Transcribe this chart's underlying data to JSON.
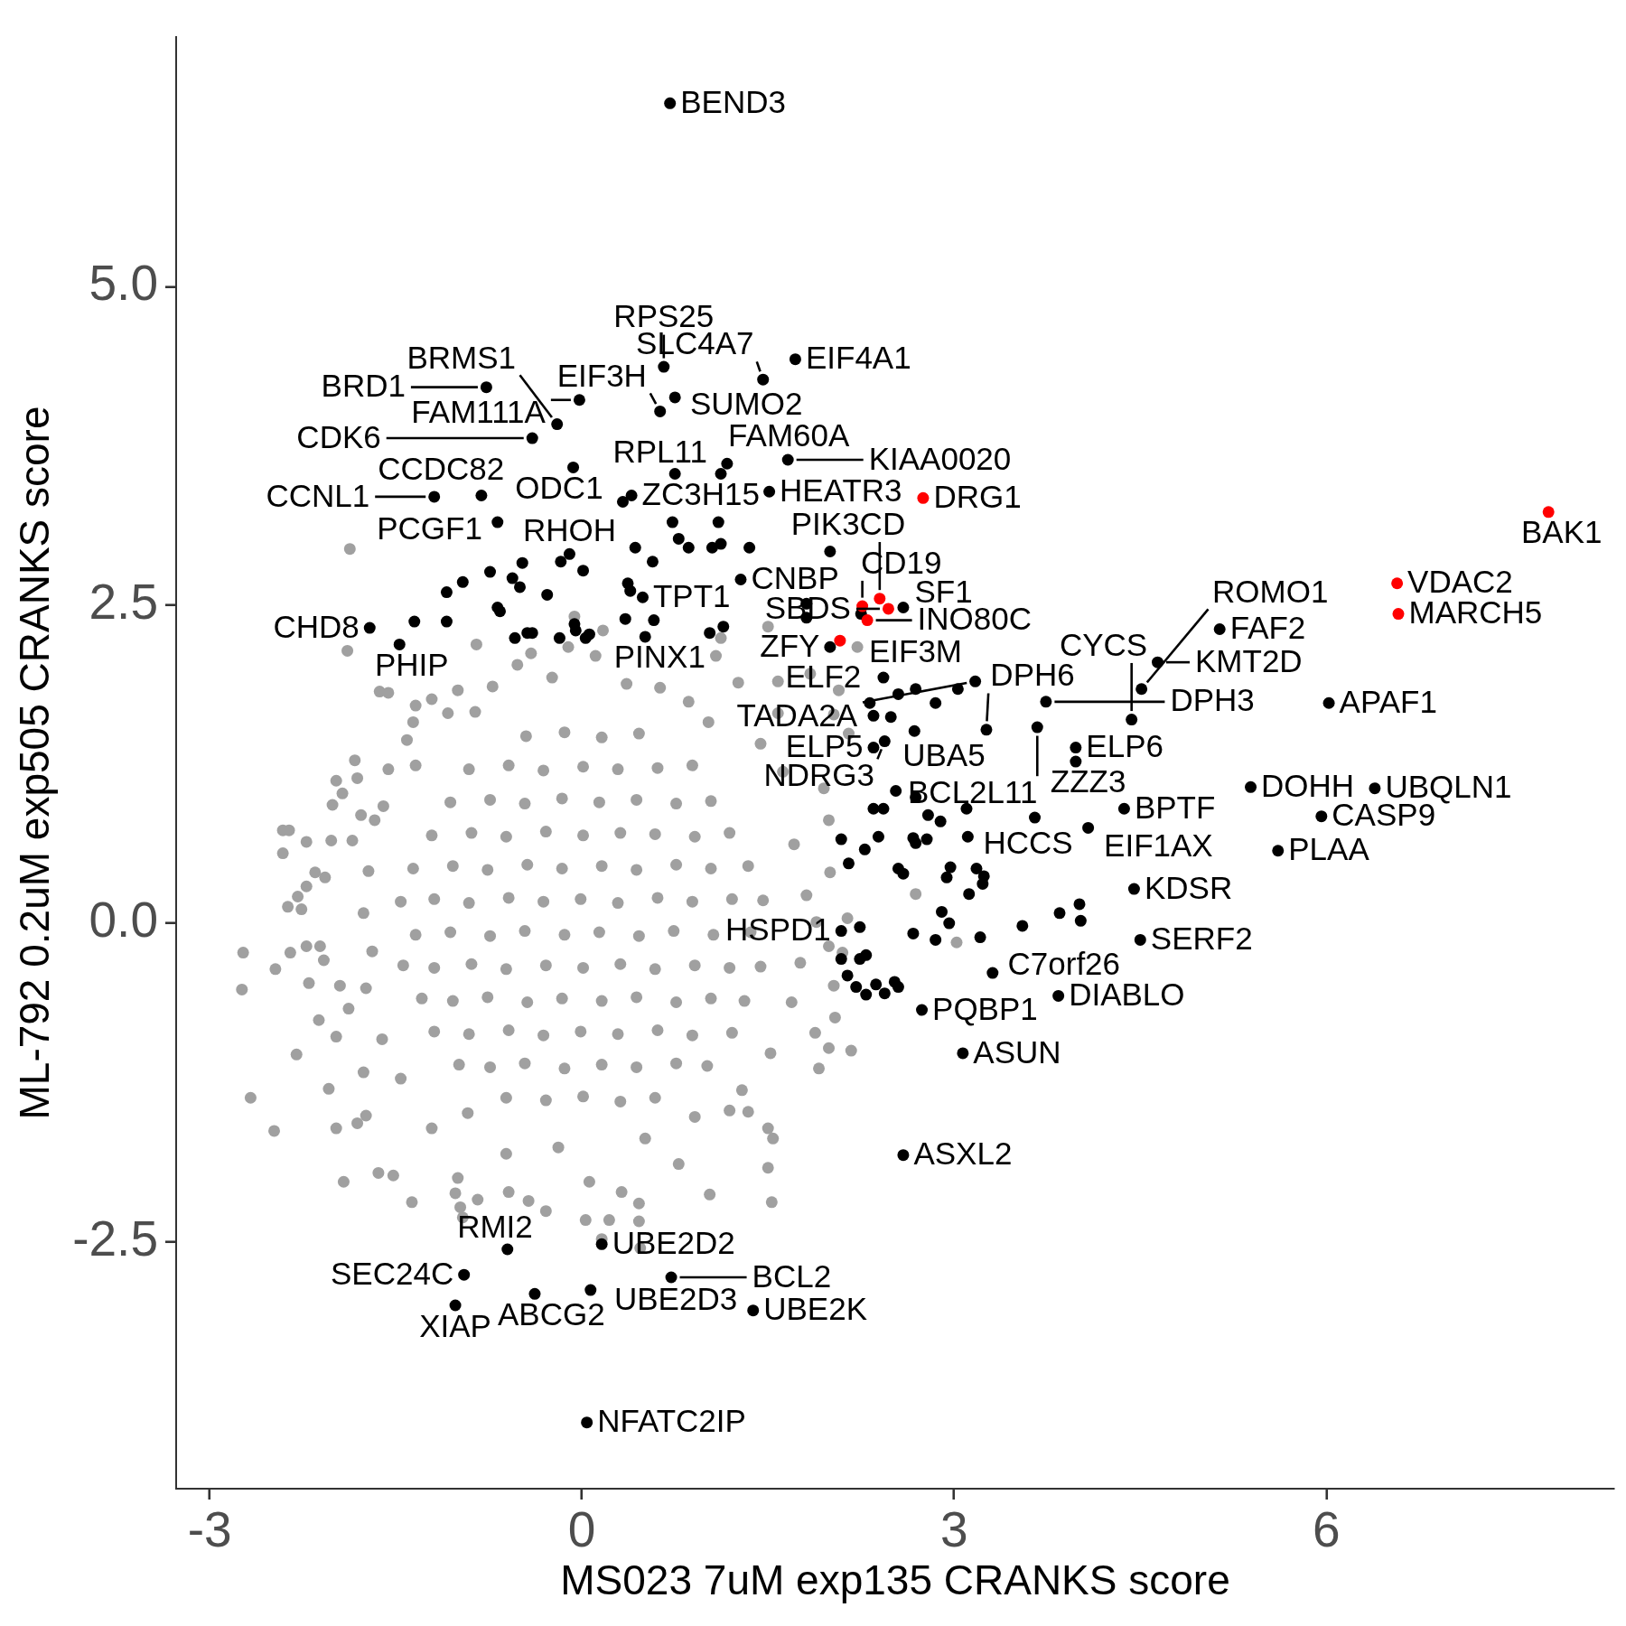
{
  "chart_data": {
    "type": "scatter",
    "xlabel": "MS023 7uM exp135 CRANKS score",
    "ylabel": "ML-792 0.2uM exp505 CRANKS score",
    "xlim": [
      -3.27,
      8.32
    ],
    "ylim": [
      -4.44,
      6.96
    ],
    "xticks": [
      -3,
      0,
      3,
      6
    ],
    "yticks": [
      -2.5,
      {
        "value": 0,
        "label": "0.0"
      },
      2.5,
      {
        "value": 5,
        "label": "5.0"
      }
    ],
    "marker": "circle",
    "series": [
      {
        "color": "#a0a0a0",
        "x": [
          -1.87,
          -1.89,
          -0.85,
          1.5,
          2.22,
          -0.06,
          0.17,
          1.12,
          2.07,
          1.84,
          2.69,
          3.02,
          2.17,
          -2.73,
          -2.74,
          -2.67,
          -2.48,
          -2.47,
          -2.41,
          -2.36,
          -2.41,
          -2.35,
          -2.3,
          -2.22,
          -2.22,
          -2.2,
          -2.37,
          -2.26,
          -2.29,
          -2.22,
          -2.15,
          -2.07,
          -2.11,
          -2.08,
          -2.12,
          -2.04,
          -1.98,
          -1.98,
          -1.92,
          -1.98,
          -1.83,
          -1.81,
          -1.93,
          -2.01,
          -2.02,
          -1.85,
          -1.78,
          -1.88,
          -1.95,
          -1.76,
          -1.74,
          -1.81,
          -1.64,
          -1.52,
          -1.37,
          -1.0,
          0.78,
          1.5,
          1.54,
          1.5,
          1.34,
          1.19,
          1.99,
          1.91,
          2.04,
          1.88,
          2.03,
          1.99,
          2.1,
          1.89,
          1.81,
          2.14,
          2.0,
          1.99,
          1.95,
          2.15,
          2.03,
          1.58,
          1.58,
          1.26,
          1.08,
          0.63,
          0.11,
          -0.11,
          -0.41,
          -0.52,
          -1.0,
          -1.34,
          -1.21,
          -1.36,
          -1.63,
          -1.56,
          -1.08,
          -1.34,
          -1.6,
          -1.67,
          -1.02,
          -0.84,
          -0.98,
          -0.96,
          -0.59,
          -0.43,
          -0.29,
          0.06,
          0.32,
          0.46,
          0.03,
          0.22,
          0.46,
          0.16,
          0.47,
          1.03,
          1.53,
          -0.72,
          -0.24,
          0.36,
          0.86,
          1.02,
          -0.86,
          -1.72,
          -1.76,
          -1.69,
          -1.74,
          -1.61,
          -1.46,
          -1.56,
          -1.41,
          1.71,
          1.76,
          1.62,
          1.44,
          1.69,
          1.52,
          1.29,
          -0.61,
          -0.19,
          0.51,
          -1.21,
          0.91,
          -0.92,
          -0.45,
          -0.14,
          0.16,
          0.46,
          -0.91,
          -0.59,
          -0.31,
          0.01,
          0.29,
          0.61,
          0.89,
          -1.06,
          -0.74,
          -0.46,
          -0.16,
          0.14,
          0.44,
          0.76,
          1.04,
          -1.21,
          -0.89,
          -0.61,
          -0.29,
          0.01,
          0.31,
          0.59,
          0.91,
          1.19,
          -1.36,
          -1.04,
          -0.76,
          -0.44,
          -0.16,
          0.16,
          0.44,
          0.76,
          1.04,
          1.34,
          -1.46,
          -1.19,
          -0.91,
          -0.59,
          -0.31,
          -0.01,
          0.29,
          0.61,
          0.89,
          1.21,
          1.46,
          -1.34,
          -1.06,
          -0.74,
          -0.46,
          -0.14,
          0.14,
          0.46,
          0.74,
          1.06,
          1.36,
          -1.44,
          -1.19,
          -0.89,
          -0.61,
          -0.29,
          0.01,
          0.31,
          0.59,
          0.91,
          1.19,
          1.44,
          -1.29,
          -1.04,
          -0.76,
          -0.44,
          -0.16,
          0.16,
          0.44,
          0.76,
          1.04,
          1.31,
          -1.19,
          -0.91,
          -0.59,
          -0.31,
          -0.01,
          0.29,
          0.61,
          0.89,
          1.21,
          -0.99,
          -0.74,
          -0.46,
          -0.14,
          0.16,
          0.44,
          0.76,
          1.01,
          -0.61,
          -0.29,
          0.01,
          0.31,
          0.59
        ],
        "values": [
          2.94,
          2.14,
          2.19,
          2.33,
          2.17,
          2.41,
          2.3,
          2.24,
          1.83,
          1.96,
          0.23,
          -0.15,
          -1.0,
          -0.23,
          -0.52,
          -1.37,
          -1.63,
          -0.36,
          0.73,
          0.73,
          0.55,
          -0.23,
          -1.03,
          0.64,
          -0.18,
          -0.47,
          0.13,
          0.11,
          0.21,
          0.29,
          0.4,
          0.36,
          -0.18,
          -0.29,
          -0.76,
          -1.3,
          -0.89,
          -1.61,
          -2.03,
          1.12,
          1.28,
          1.14,
          1.02,
          0.93,
          0.65,
          0.65,
          0.85,
          -0.67,
          -0.49,
          -1.17,
          -1.51,
          -1.57,
          -1.96,
          -1.98,
          -2.19,
          -2.0,
          -1.89,
          -1.61,
          -1.69,
          -1.92,
          -1.48,
          -1.47,
          -0.98,
          -1.14,
          -0.74,
          -0.86,
          -0.49,
          -0.18,
          -0.23,
          0.01,
          0.22,
          0.04,
          0.4,
          0.81,
          1.06,
          1.49,
          1.64,
          1.65,
          1.9,
          1.89,
          2.1,
          1.85,
          2.1,
          2.17,
          2.12,
          2.03,
          1.83,
          1.71,
          1.76,
          1.58,
          1.82,
          1.81,
          1.65,
          1.24,
          0.92,
          0.81,
          -2.12,
          -2.17,
          -2.23,
          -2.31,
          -2.11,
          -2.18,
          -2.26,
          -2.03,
          -2.11,
          -2.2,
          -2.33,
          -2.33,
          -2.34,
          -2.48,
          -2.55,
          -2.13,
          -2.19,
          1.86,
          1.93,
          1.88,
          1.74,
          1.58,
          1.66,
          0.41,
          0.08,
          -0.22,
          -0.51,
          -0.91,
          -1.22,
          1.21,
          1.44,
          0.62,
          -0.31,
          1.19,
          1.41,
          -0.62,
          -1.02,
          -1.31,
          -1.81,
          -1.76,
          -1.69,
          -1.61,
          -1.52,
          -1.49,
          1.47,
          1.5,
          1.46,
          1.49,
          1.21,
          1.24,
          1.2,
          1.23,
          1.21,
          1.22,
          1.24,
          0.95,
          0.97,
          0.94,
          0.98,
          0.95,
          0.97,
          0.94,
          0.96,
          0.69,
          0.71,
          0.68,
          0.72,
          0.69,
          0.71,
          0.7,
          0.68,
          0.71,
          0.43,
          0.45,
          0.42,
          0.46,
          0.43,
          0.45,
          0.42,
          0.46,
          0.43,
          0.45,
          0.17,
          0.19,
          0.16,
          0.2,
          0.17,
          0.19,
          0.16,
          0.2,
          0.17,
          0.19,
          0.18,
          -0.09,
          -0.07,
          -0.1,
          -0.06,
          -0.09,
          -0.07,
          -0.1,
          -0.06,
          -0.09,
          -0.07,
          -0.33,
          -0.35,
          -0.32,
          -0.36,
          -0.33,
          -0.35,
          -0.32,
          -0.36,
          -0.33,
          -0.35,
          -0.34,
          -0.59,
          -0.61,
          -0.58,
          -0.62,
          -0.59,
          -0.61,
          -0.58,
          -0.62,
          -0.59,
          -0.61,
          -0.85,
          -0.87,
          -0.84,
          -0.88,
          -0.85,
          -0.87,
          -0.84,
          -0.88,
          -0.86,
          -1.11,
          -1.13,
          -1.1,
          -1.14,
          -1.11,
          -1.13,
          -1.1,
          -1.12,
          -1.37,
          -1.39,
          -1.36,
          -1.4,
          -1.37
        ]
      },
      {
        "color": "#000000",
        "x": [
          0.71,
          -0.77,
          0.66,
          1.72,
          1.46,
          0.75,
          -0.02,
          0.63,
          -0.2,
          -0.4,
          -0.07,
          0.75,
          1.17,
          1.12,
          1.66,
          1.51,
          -0.81,
          -1.19,
          0.33,
          0.4,
          -0.68,
          0.73,
          1.1,
          0.78,
          0.86,
          1.05,
          1.12,
          1.35,
          0.43,
          0.57,
          -0.1,
          -0.17,
          0.01,
          -0.48,
          -0.74,
          -0.56,
          -0.5,
          -0.96,
          -1.09,
          -0.28,
          2.0,
          1.28,
          0.37,
          0.39,
          0.49,
          1.81,
          1.81,
          2.25,
          2.59,
          -1.71,
          -1.47,
          -1.35,
          -1.09,
          -0.68,
          -0.66,
          -0.54,
          -0.44,
          -0.4,
          -0.18,
          -0.06,
          -0.05,
          0.06,
          0.03,
          0.35,
          0.58,
          0.51,
          1.03,
          1.14,
          2.0,
          2.43,
          2.55,
          2.69,
          2.85,
          3.03,
          3.17,
          3.74,
          2.32,
          2.35,
          2.49,
          2.68,
          3.26,
          3.67,
          4.43,
          4.51,
          4.64,
          5.14,
          6.02,
          3.98,
          3.98,
          2.35,
          2.44,
          4.37,
          5.39,
          6.39,
          2.53,
          2.69,
          2.35,
          2.43,
          3.1,
          2.79,
          2.89,
          3.65,
          4.08,
          2.09,
          2.28,
          2.39,
          2.15,
          2.67,
          2.69,
          2.78,
          3.11,
          2.55,
          2.59,
          2.97,
          2.94,
          3.18,
          3.24,
          3.23,
          3.12,
          5.61,
          4.45,
          5.96,
          2.9,
          2.96,
          2.67,
          2.85,
          3.21,
          3.55,
          3.85,
          4.01,
          4.02,
          4.5,
          2.09,
          2.24,
          2.09,
          2.24,
          2.29,
          2.14,
          2.21,
          2.29,
          2.37,
          2.44,
          2.52,
          2.55,
          3.31,
          3.84,
          2.74,
          3.07,
          2.59,
          -0.6,
          0.16,
          -0.95,
          -1.02,
          -0.38,
          0.07,
          0.72,
          1.38,
          0.04
        ],
        "values": [
          6.44,
          4.21,
          4.37,
          4.43,
          4.27,
          4.13,
          4.11,
          4.02,
          3.92,
          3.81,
          3.58,
          3.53,
          3.61,
          3.53,
          3.64,
          3.39,
          3.36,
          3.35,
          3.31,
          3.36,
          3.15,
          3.15,
          3.15,
          3.02,
          2.95,
          2.95,
          2.98,
          2.95,
          2.95,
          2.84,
          2.9,
          2.84,
          2.77,
          2.83,
          2.76,
          2.71,
          2.64,
          2.68,
          2.6,
          2.58,
          2.92,
          2.7,
          2.67,
          2.61,
          2.56,
          2.51,
          2.4,
          2.43,
          2.48,
          2.32,
          2.19,
          2.37,
          2.37,
          2.48,
          2.45,
          2.24,
          2.28,
          2.28,
          2.24,
          2.35,
          2.3,
          2.27,
          2.24,
          2.39,
          2.38,
          2.25,
          2.28,
          2.33,
          2.17,
          1.93,
          1.8,
          1.84,
          1.73,
          1.84,
          1.9,
          1.74,
          1.73,
          1.63,
          1.62,
          1.51,
          1.52,
          1.54,
          1.6,
          1.84,
          2.05,
          2.31,
          1.73,
          1.38,
          1.27,
          1.38,
          1.43,
          0.9,
          1.07,
          1.06,
          1.04,
          0.99,
          0.9,
          0.9,
          0.9,
          0.85,
          0.8,
          0.83,
          0.75,
          0.66,
          0.58,
          0.68,
          0.47,
          0.67,
          0.63,
          0.66,
          0.68,
          0.43,
          0.39,
          0.44,
          0.36,
          0.43,
          0.37,
          0.31,
          0.23,
          0.57,
          0.27,
          0.84,
          0.09,
          0.0,
          -0.08,
          -0.13,
          -0.11,
          -0.02,
          0.08,
          0.15,
          0.02,
          -0.13,
          -0.06,
          -0.03,
          -0.28,
          -0.28,
          -0.25,
          -0.41,
          -0.5,
          -0.56,
          -0.48,
          -0.55,
          -0.46,
          -0.5,
          -0.39,
          -0.57,
          -0.68,
          -1.02,
          -1.82,
          -2.56,
          -2.52,
          -2.76,
          -3.0,
          -2.91,
          -2.88,
          -2.78,
          -3.04,
          -3.92
        ],
        "value_labels": [
          "BEND3",
          "BRD1",
          "RPS25",
          "EIF4A1",
          "SLC4A7",
          "SUMO2",
          "FAM111A",
          "EIF3H",
          "BRMS1",
          "CDK6",
          "ODC1",
          "RPL11",
          "FAM60A",
          null,
          "KIAA0020",
          "HEATR3",
          "CCDC82",
          "CCNL1",
          null,
          "ZC3H15",
          "PCGF1",
          null,
          null,
          null,
          null,
          null,
          null,
          null,
          null,
          null,
          "RHOH",
          null,
          null,
          null,
          null,
          null,
          null,
          null,
          null,
          null,
          null,
          "CNBP",
          null,
          null,
          "TPT1",
          null,
          null,
          null,
          "SF1",
          "CHD8",
          "PHIP",
          null,
          null,
          null,
          null,
          null,
          null,
          null,
          null,
          null,
          null,
          null,
          null,
          null,
          null,
          "PINX1",
          null,
          null,
          "ZFY",
          "EIF3M",
          null,
          null,
          null,
          null,
          "TADA2A",
          "DPH3",
          null,
          null,
          null,
          "UBA5",
          "DPH6",
          "BCL2L11",
          "CYCS",
          "ROMO1",
          "KMT2D",
          "FAF2",
          "APAF1",
          "ELP6",
          "ZZZ3",
          "ELP5",
          "NDRG3",
          "BPTF",
          "DOHH",
          "UBQLN1",
          null,
          null,
          null,
          null,
          null,
          null,
          null,
          null,
          "EIF1AX",
          null,
          null,
          null,
          null,
          null,
          null,
          null,
          "HCCS",
          null,
          null,
          null,
          null,
          null,
          null,
          null,
          null,
          "PLAA",
          "KDSR",
          "CASP9",
          null,
          null,
          null,
          null,
          null,
          null,
          null,
          null,
          null,
          "SERF2",
          "HSPD1",
          null,
          null,
          null,
          null,
          null,
          null,
          null,
          null,
          null,
          null,
          null,
          "C7orf26",
          "DIABLO",
          "PQBP1",
          "ASUN",
          "ASXL2",
          "RMI2",
          "UBE2D2",
          "SEC24C",
          "XIAP",
          "ABCG2",
          "UBE2D3",
          "BCL2",
          "UBE2K",
          "NFATC2IP"
        ]
      },
      {
        "color": "#ff0000",
        "x": [
          2.75,
          2.26,
          2.4,
          2.47,
          2.3,
          2.08,
          7.79,
          6.57,
          6.58
        ],
        "values": [
          3.34,
          2.49,
          2.55,
          2.47,
          2.38,
          2.22,
          3.23,
          2.67,
          2.43
        ],
        "value_labels": [
          "DRG1",
          "CD19",
          "PIK3CD",
          "SBDS",
          "INO80C",
          "ELF2",
          "BAK1",
          "VDAC2",
          "MARCH5"
        ]
      }
    ]
  }
}
